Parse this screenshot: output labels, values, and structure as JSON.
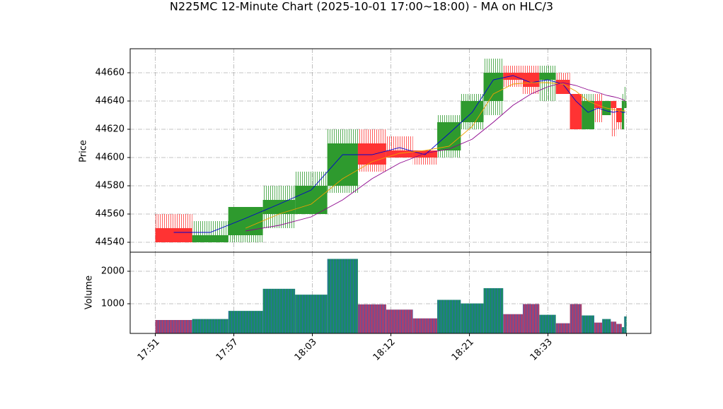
{
  "chart_data": {
    "type": "candlestick",
    "title": "N225MC 12-Minute Chart (2025-10-01 17:00~18:00) - MA on HLC/3",
    "ylabel": "Price",
    "bins": [
      0,
      0.47,
      0.93,
      1.37,
      1.78,
      2.19,
      2.58,
      2.94,
      3.28,
      3.59,
      3.89,
      4.18,
      4.43,
      4.68,
      4.89,
      5.1,
      5.28,
      5.43,
      5.59,
      5.69,
      5.8,
      5.87,
      5.94,
      5.97,
      6.0
    ],
    "open": [
      44550,
      44540,
      44545,
      44560,
      44560,
      44580,
      44610,
      44605,
      44605,
      44605,
      44625,
      44640,
      44660,
      44660,
      44655,
      44655,
      44645,
      44620,
      44640,
      44630,
      44640,
      44635,
      44620,
      44635
    ],
    "high": [
      44560,
      44555,
      44565,
      44580,
      44590,
      44620,
      44620,
      44615,
      44605,
      44630,
      44645,
      44670,
      44665,
      44665,
      44665,
      44660,
      44645,
      44645,
      44645,
      44640,
      44640,
      44635,
      44645,
      44650
    ],
    "low": [
      44540,
      44540,
      44540,
      44550,
      44560,
      44575,
      44590,
      44600,
      44595,
      44600,
      44620,
      44630,
      44650,
      44645,
      44640,
      44645,
      44620,
      44620,
      44625,
      44630,
      44615,
      44620,
      44620,
      44635
    ],
    "close": [
      44540,
      44545,
      44565,
      44570,
      44580,
      44610,
      44595,
      44600,
      44600,
      44625,
      44640,
      44660,
      44655,
      44650,
      44660,
      44645,
      44620,
      44640,
      44635,
      44640,
      44635,
      44625,
      44640,
      44640
    ],
    "up_color": "#2e9a2e",
    "down_color": "#ff3333",
    "ma": [
      {
        "color": "#0000cc",
        "values": [
          44547,
          44547,
          44557,
          44567,
          44577,
          44602,
          44602,
          44607,
          44602,
          44617,
          44632,
          44655,
          44658,
          44653,
          44655,
          44652,
          44640,
          44632,
          44635,
          44633,
          44632,
          44633,
          44632,
          44632
        ]
      },
      {
        "color": "#f0a000",
        "values": [
          null,
          null,
          44550,
          44560,
          44567,
          44585,
          44597,
          44603,
          44605,
          44608,
          44622,
          44645,
          44652,
          44653,
          44653,
          44652,
          44647,
          44640,
          44637,
          44635,
          44634,
          44633,
          44633,
          44633
        ]
      },
      {
        "color": "#8b008b",
        "values": [
          null,
          null,
          44548,
          44552,
          44558,
          44570,
          44585,
          44596,
          44603,
          44606,
          44613,
          44625,
          44637,
          44645,
          44650,
          44653,
          44651,
          44648,
          44646,
          44644,
          44643,
          44642,
          44641,
          44640
        ]
      }
    ],
    "xlim": [
      -0.32,
      6.31
    ],
    "xticks": [
      {
        "value": 0,
        "label": "17:51"
      },
      {
        "value": 1,
        "label": "17:57"
      },
      {
        "value": 2,
        "label": "18:03"
      },
      {
        "value": 3,
        "label": "18:12"
      },
      {
        "value": 4,
        "label": "18:21"
      },
      {
        "value": 5,
        "label": "18:33"
      },
      {
        "value": 6,
        "label": null
      }
    ],
    "ylim": [
      44533,
      44677
    ],
    "yticks": [
      44540,
      44560,
      44580,
      44600,
      44620,
      44640,
      44660
    ],
    "grid": true,
    "volume": {
      "ylabel": "Volume",
      "values": [
        500,
        530,
        780,
        1460,
        1280,
        2380,
        980,
        820,
        550,
        1120,
        1010,
        1480,
        680,
        990,
        660,
        400,
        990,
        640,
        420,
        530,
        450,
        380,
        280,
        610
      ],
      "up_color": "#1a8a66",
      "down_color": "#a8406e",
      "ylim": [
        87,
        2587
      ],
      "yticks": [
        1000,
        2000
      ]
    }
  }
}
